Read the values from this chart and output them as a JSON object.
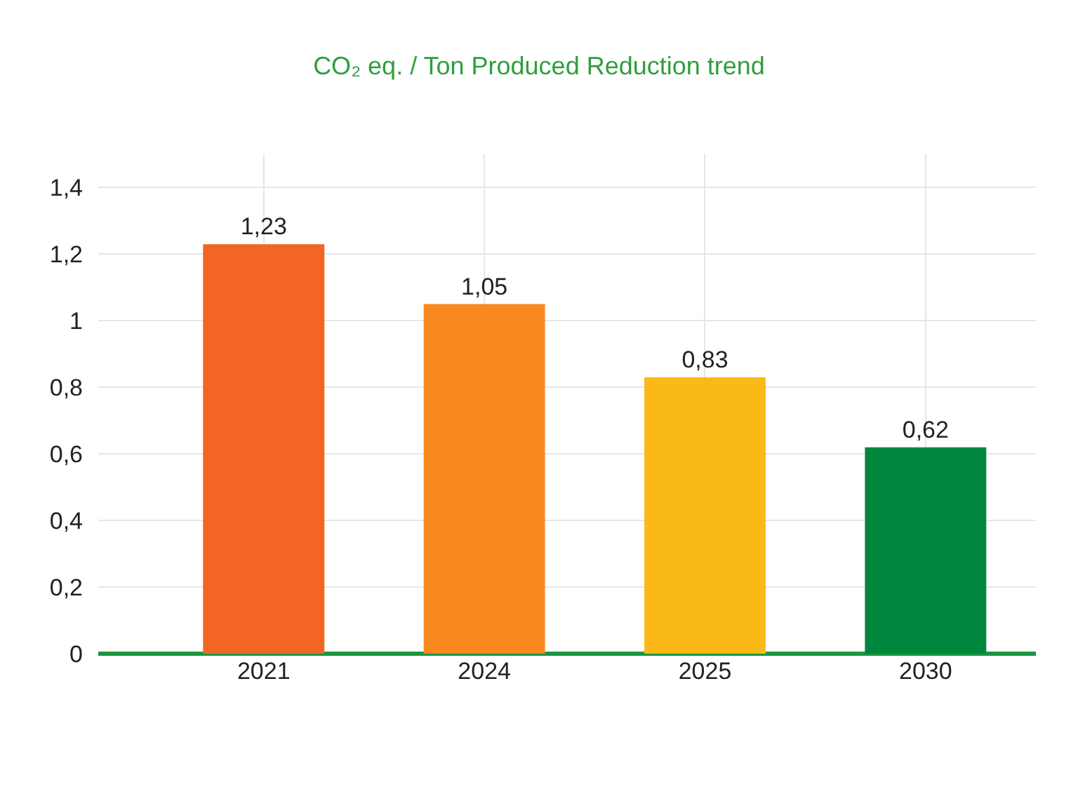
{
  "chart_data": {
    "type": "bar",
    "title": "CO₂ eq. / Ton Produced Reduction trend",
    "categories": [
      "2021",
      "2024",
      "2025",
      "2030"
    ],
    "values": [
      1.23,
      1.05,
      0.83,
      0.62
    ],
    "colors": [
      "#f26522",
      "#f7891f",
      "#fbb917",
      "#00873d"
    ],
    "value_labels": [
      "1,23",
      "1,05",
      "0,83",
      "0,62"
    ],
    "ylim": [
      0,
      1.5
    ],
    "yticks": [
      {
        "value": 0,
        "label": "0"
      },
      {
        "value": 0.2,
        "label": "0,2"
      },
      {
        "value": 0.4,
        "label": "0,4"
      },
      {
        "value": 0.6,
        "label": "0,6"
      },
      {
        "value": 0.8,
        "label": "0,8"
      },
      {
        "value": 1,
        "label": "1"
      },
      {
        "value": 1.2,
        "label": "1,2"
      },
      {
        "value": 1.4,
        "label": "1,4"
      }
    ],
    "grid": true
  }
}
